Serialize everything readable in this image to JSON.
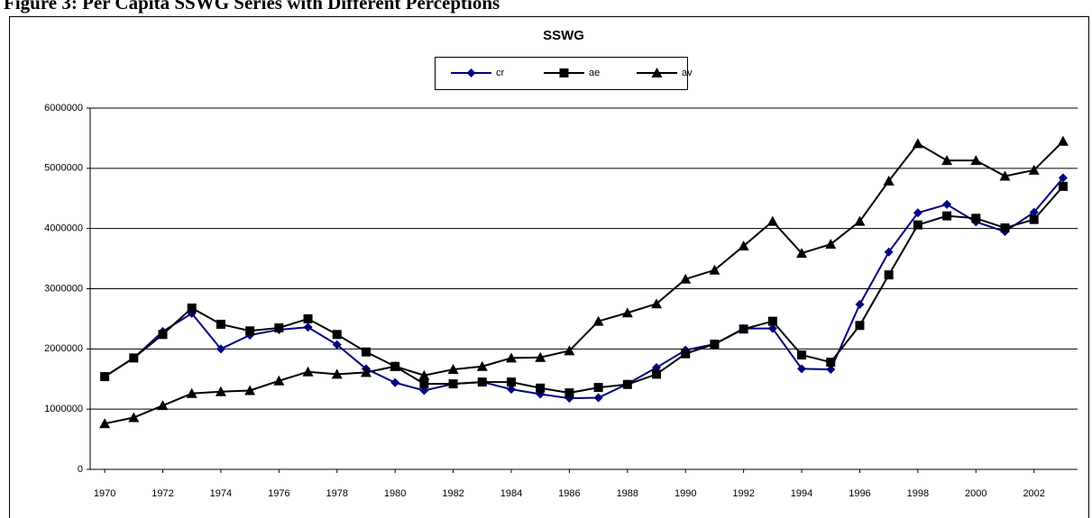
{
  "caption": "Figure 3: Per Capita SSWG Series with Different Perceptions",
  "chart_data": {
    "type": "line",
    "title": "SSWG",
    "x": [
      1970,
      1971,
      1972,
      1973,
      1974,
      1975,
      1976,
      1977,
      1978,
      1979,
      1980,
      1981,
      1982,
      1983,
      1984,
      1985,
      1986,
      1987,
      1988,
      1989,
      1990,
      1991,
      1992,
      1993,
      1994,
      1995,
      1996,
      1997,
      1998,
      1999,
      2000,
      2001,
      2002,
      2003
    ],
    "xlim": [
      1969.5,
      2003.5
    ],
    "xticks": [
      1970,
      1972,
      1974,
      1976,
      1978,
      1980,
      1982,
      1984,
      1986,
      1988,
      1990,
      1992,
      1994,
      1996,
      1998,
      2000,
      2002
    ],
    "ylim": [
      0,
      6000000
    ],
    "yticks": [
      0,
      1000000,
      2000000,
      3000000,
      4000000,
      5000000,
      6000000
    ],
    "grid": true,
    "legend": "top",
    "series": [
      {
        "name": "cr",
        "color": "#000080",
        "marker": "diamond",
        "values": [
          1540000,
          1850000,
          2290000,
          2590000,
          2000000,
          2230000,
          2320000,
          2360000,
          2070000,
          1670000,
          1440000,
          1310000,
          1420000,
          1450000,
          1330000,
          1250000,
          1180000,
          1190000,
          1420000,
          1690000,
          1980000,
          2080000,
          2340000,
          2340000,
          1670000,
          1660000,
          2740000,
          3610000,
          4260000,
          4400000,
          4110000,
          3950000,
          4270000,
          4840000
        ]
      },
      {
        "name": "ae",
        "color": "#000000",
        "marker": "square",
        "values": [
          1540000,
          1850000,
          2240000,
          2680000,
          2410000,
          2300000,
          2350000,
          2500000,
          2240000,
          1950000,
          1710000,
          1420000,
          1420000,
          1450000,
          1450000,
          1350000,
          1270000,
          1360000,
          1410000,
          1580000,
          1920000,
          2080000,
          2330000,
          2460000,
          1900000,
          1780000,
          2390000,
          3230000,
          4060000,
          4210000,
          4170000,
          4010000,
          4150000,
          4700000
        ]
      },
      {
        "name": "av",
        "color": "#000000",
        "marker": "triangle",
        "values": [
          760000,
          860000,
          1060000,
          1260000,
          1290000,
          1310000,
          1470000,
          1620000,
          1580000,
          1610000,
          1710000,
          1560000,
          1660000,
          1710000,
          1850000,
          1860000,
          1970000,
          2460000,
          2600000,
          2750000,
          3160000,
          3310000,
          3710000,
          4120000,
          3590000,
          3740000,
          4120000,
          4790000,
          5410000,
          5130000,
          5130000,
          4870000,
          4970000,
          5450000
        ]
      }
    ]
  }
}
